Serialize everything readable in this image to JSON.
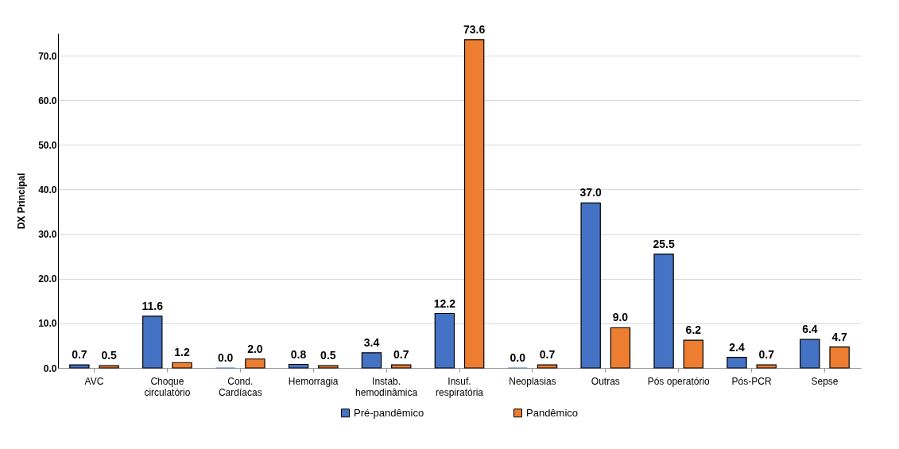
{
  "chart_data": {
    "type": "bar",
    "ylabel": "DX Principal",
    "categories": [
      "AVC",
      "Choque\ncirculatório",
      "Cond.\nCardíacas",
      "Hemorragia",
      "Instab.\nhemodinâmica",
      "Insuf.\nrespiratória",
      "Neoplasias",
      "Outras",
      "Pós operatório",
      "Pós-PCR",
      "Sepse"
    ],
    "series": [
      {
        "name": "Pré-pandêmico",
        "color": "#4472c4",
        "values": [
          0.7,
          11.6,
          0.0,
          0.8,
          3.4,
          12.2,
          0.0,
          37.0,
          25.5,
          2.4,
          6.4
        ],
        "value_labels": [
          "0.7",
          "11.6",
          "0.0",
          "0.8",
          "3.4",
          "12.2",
          "0.0",
          "37.0",
          "25.5",
          "2.4",
          "6.4"
        ]
      },
      {
        "name": "Pandêmico",
        "color": "#ed7d31",
        "values": [
          0.5,
          1.2,
          2.0,
          0.5,
          0.7,
          73.6,
          0.7,
          9.0,
          6.2,
          0.7,
          4.7
        ],
        "value_labels": [
          "0.5",
          "1.2",
          "2.0",
          "0.5",
          "0.7",
          "73.6",
          "0.7",
          "9.0",
          "6.2",
          "0.7",
          "4.7"
        ]
      }
    ],
    "ylim": [
      0,
      75
    ],
    "yticks": [
      {
        "value": 0,
        "label": "0.0"
      },
      {
        "value": 10,
        "label": "10.0"
      },
      {
        "value": 20,
        "label": "20.0"
      },
      {
        "value": 30,
        "label": "30.0"
      },
      {
        "value": 40,
        "label": "40.0"
      },
      {
        "value": 50,
        "label": "50.0"
      },
      {
        "value": 60,
        "label": "60.0"
      },
      {
        "value": 70,
        "label": "70.0"
      }
    ],
    "grid": "y",
    "legend": "bottom"
  }
}
